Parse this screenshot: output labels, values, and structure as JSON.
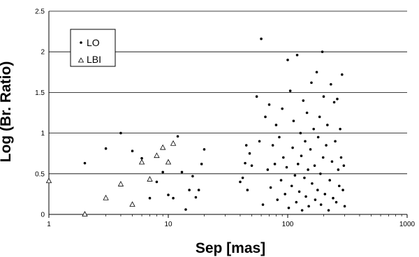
{
  "chart_data": {
    "type": "scatter",
    "title": "",
    "xlabel": "Sep [mas]",
    "ylabel": "Log (Br. Ratio)",
    "xscale": "log",
    "xlim": [
      1,
      1000
    ],
    "ylim": [
      0,
      2.5
    ],
    "x_ticks": [
      "1",
      "10",
      "100",
      "1000"
    ],
    "y_ticks": [
      "0",
      "0.5",
      "1",
      "1.5",
      "2",
      "2.5"
    ],
    "grid": "horizontal",
    "legend_position": "top-left",
    "series": [
      {
        "name": "LO",
        "marker": "dot",
        "points": [
          [
            2,
            0.63
          ],
          [
            3,
            0.81
          ],
          [
            4,
            1.0
          ],
          [
            5,
            0.78
          ],
          [
            6,
            0.69
          ],
          [
            7,
            0.2
          ],
          [
            8,
            0.4
          ],
          [
            9,
            0.52
          ],
          [
            10,
            0.24
          ],
          [
            11,
            0.2
          ],
          [
            12,
            0.96
          ],
          [
            13,
            0.52
          ],
          [
            14,
            0.06
          ],
          [
            15,
            0.3
          ],
          [
            16,
            0.47
          ],
          [
            17,
            0.21
          ],
          [
            18,
            0.3
          ],
          [
            19,
            0.62
          ],
          [
            20,
            0.8
          ],
          [
            40,
            0.4
          ],
          [
            42,
            0.45
          ],
          [
            44,
            0.63
          ],
          [
            45,
            0.85
          ],
          [
            46,
            0.3
          ],
          [
            48,
            0.75
          ],
          [
            50,
            0.6
          ],
          [
            55,
            1.45
          ],
          [
            58,
            0.9
          ],
          [
            60,
            2.16
          ],
          [
            62,
            0.12
          ],
          [
            65,
            1.2
          ],
          [
            68,
            0.55
          ],
          [
            70,
            1.35
          ],
          [
            72,
            0.33
          ],
          [
            75,
            0.85
          ],
          [
            78,
            0.62
          ],
          [
            80,
            1.1
          ],
          [
            82,
            0.18
          ],
          [
            85,
            0.95
          ],
          [
            88,
            0.42
          ],
          [
            90,
            1.3
          ],
          [
            92,
            0.7
          ],
          [
            95,
            0.25
          ],
          [
            98,
            0.58
          ],
          [
            100,
            1.9
          ],
          [
            102,
            0.08
          ],
          [
            105,
            1.52
          ],
          [
            108,
            0.35
          ],
          [
            110,
            0.82
          ],
          [
            112,
            1.15
          ],
          [
            115,
            0.48
          ],
          [
            118,
            0.15
          ],
          [
            120,
            1.96
          ],
          [
            122,
            0.62
          ],
          [
            125,
            0.28
          ],
          [
            128,
            1.0
          ],
          [
            130,
            0.72
          ],
          [
            132,
            0.05
          ],
          [
            135,
            1.4
          ],
          [
            138,
            0.45
          ],
          [
            140,
            0.9
          ],
          [
            142,
            0.22
          ],
          [
            145,
            1.25
          ],
          [
            148,
            0.55
          ],
          [
            150,
            0.1
          ],
          [
            155,
            0.8
          ],
          [
            158,
            1.62
          ],
          [
            160,
            0.38
          ],
          [
            165,
            1.05
          ],
          [
            168,
            0.6
          ],
          [
            170,
            0.18
          ],
          [
            175,
            1.75
          ],
          [
            178,
            0.3
          ],
          [
            180,
            0.95
          ],
          [
            185,
            1.2
          ],
          [
            188,
            0.5
          ],
          [
            190,
            0.12
          ],
          [
            195,
            2.0
          ],
          [
            198,
            0.7
          ],
          [
            200,
            1.45
          ],
          [
            205,
            0.25
          ],
          [
            210,
            0.85
          ],
          [
            215,
            1.1
          ],
          [
            220,
            0.05
          ],
          [
            225,
            0.42
          ],
          [
            230,
            1.6
          ],
          [
            235,
            0.65
          ],
          [
            240,
            0.2
          ],
          [
            245,
            1.38
          ],
          [
            250,
            0.9
          ],
          [
            255,
            0.15
          ],
          [
            260,
            1.42
          ],
          [
            265,
            0.55
          ],
          [
            270,
            0.35
          ],
          [
            275,
            1.05
          ],
          [
            280,
            0.7
          ],
          [
            285,
            1.72
          ],
          [
            290,
            0.3
          ],
          [
            295,
            0.6
          ],
          [
            300,
            0.1
          ]
        ]
      },
      {
        "name": "LBI",
        "marker": "triangle",
        "points": [
          [
            1,
            0.41
          ],
          [
            2,
            0.0
          ],
          [
            3,
            0.2
          ],
          [
            4,
            0.37
          ],
          [
            5,
            0.12
          ],
          [
            6,
            0.64
          ],
          [
            7,
            0.43
          ],
          [
            8,
            0.72
          ],
          [
            9,
            0.82
          ],
          [
            10,
            0.64
          ],
          [
            11,
            0.87
          ]
        ]
      }
    ]
  }
}
